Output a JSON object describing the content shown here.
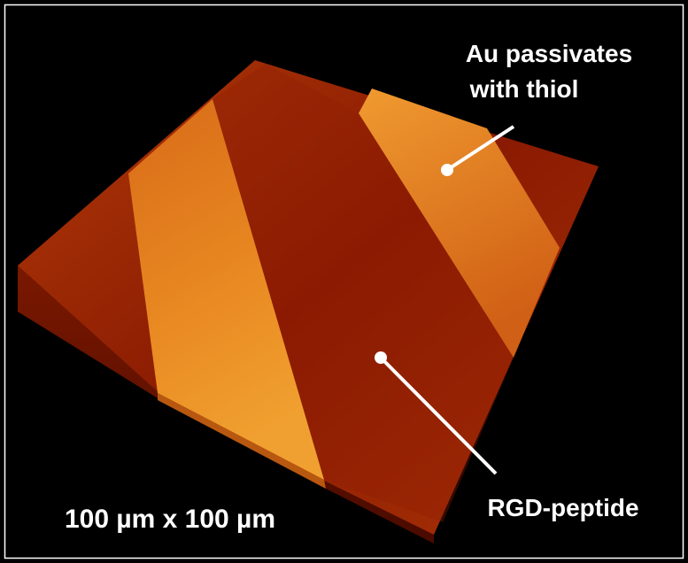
{
  "annotations": [
    {
      "lines": [
        "Au passivates",
        "with thiol"
      ]
    },
    {
      "lines": [
        "RGD-peptide"
      ]
    }
  ],
  "scale_label": "100 µm x 100 µm"
}
